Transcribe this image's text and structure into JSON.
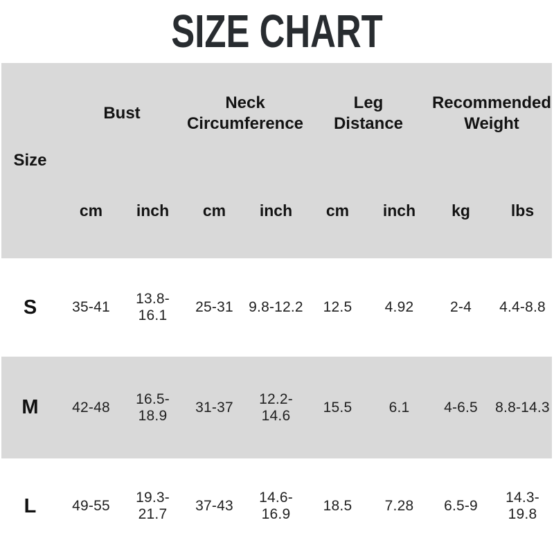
{
  "title": "SIZE CHART",
  "chart_data": {
    "type": "table",
    "title": "SIZE CHART",
    "corner_label": "Size",
    "column_groups": [
      {
        "label": "Bust",
        "lines": [
          "Bust"
        ],
        "units": [
          "cm",
          "inch"
        ]
      },
      {
        "label": "Neck Circumference",
        "lines": [
          "Neck",
          "Circumference"
        ],
        "units": [
          "cm",
          "inch"
        ]
      },
      {
        "label": "Leg Distance",
        "lines": [
          "Leg",
          "Distance"
        ],
        "units": [
          "cm",
          "inch"
        ]
      },
      {
        "label": "Recommended Weight",
        "lines": [
          "Recommended",
          "Weight"
        ],
        "units": [
          "kg",
          "lbs"
        ]
      }
    ],
    "unit_row": [
      "cm",
      "inch",
      "cm",
      "inch",
      "cm",
      "inch",
      "kg",
      "lbs"
    ],
    "rows": [
      {
        "size": "S",
        "values": [
          "35-41",
          "13.8-16.1",
          "25-31",
          "9.8-12.2",
          "12.5",
          "4.92",
          "2-4",
          "4.4-8.8"
        ]
      },
      {
        "size": "M",
        "values": [
          "42-48",
          "16.5-18.9",
          "31-37",
          "12.2-14.6",
          "15.5",
          "6.1",
          "4-6.5",
          "8.8-14.3"
        ]
      },
      {
        "size": "L",
        "values": [
          "49-55",
          "19.3-21.7",
          "37-43",
          "14.6-16.9",
          "18.5",
          "7.28",
          "6.5-9",
          "14.3-19.8"
        ]
      }
    ],
    "layout": {
      "grid": "off",
      "row_banding": "gray-white-alternate"
    }
  },
  "colors": {
    "band_gray": "#d9d9d9",
    "title": "#282c30",
    "text": "#131313",
    "value_text": "#202020",
    "background": "#ffffff"
  }
}
